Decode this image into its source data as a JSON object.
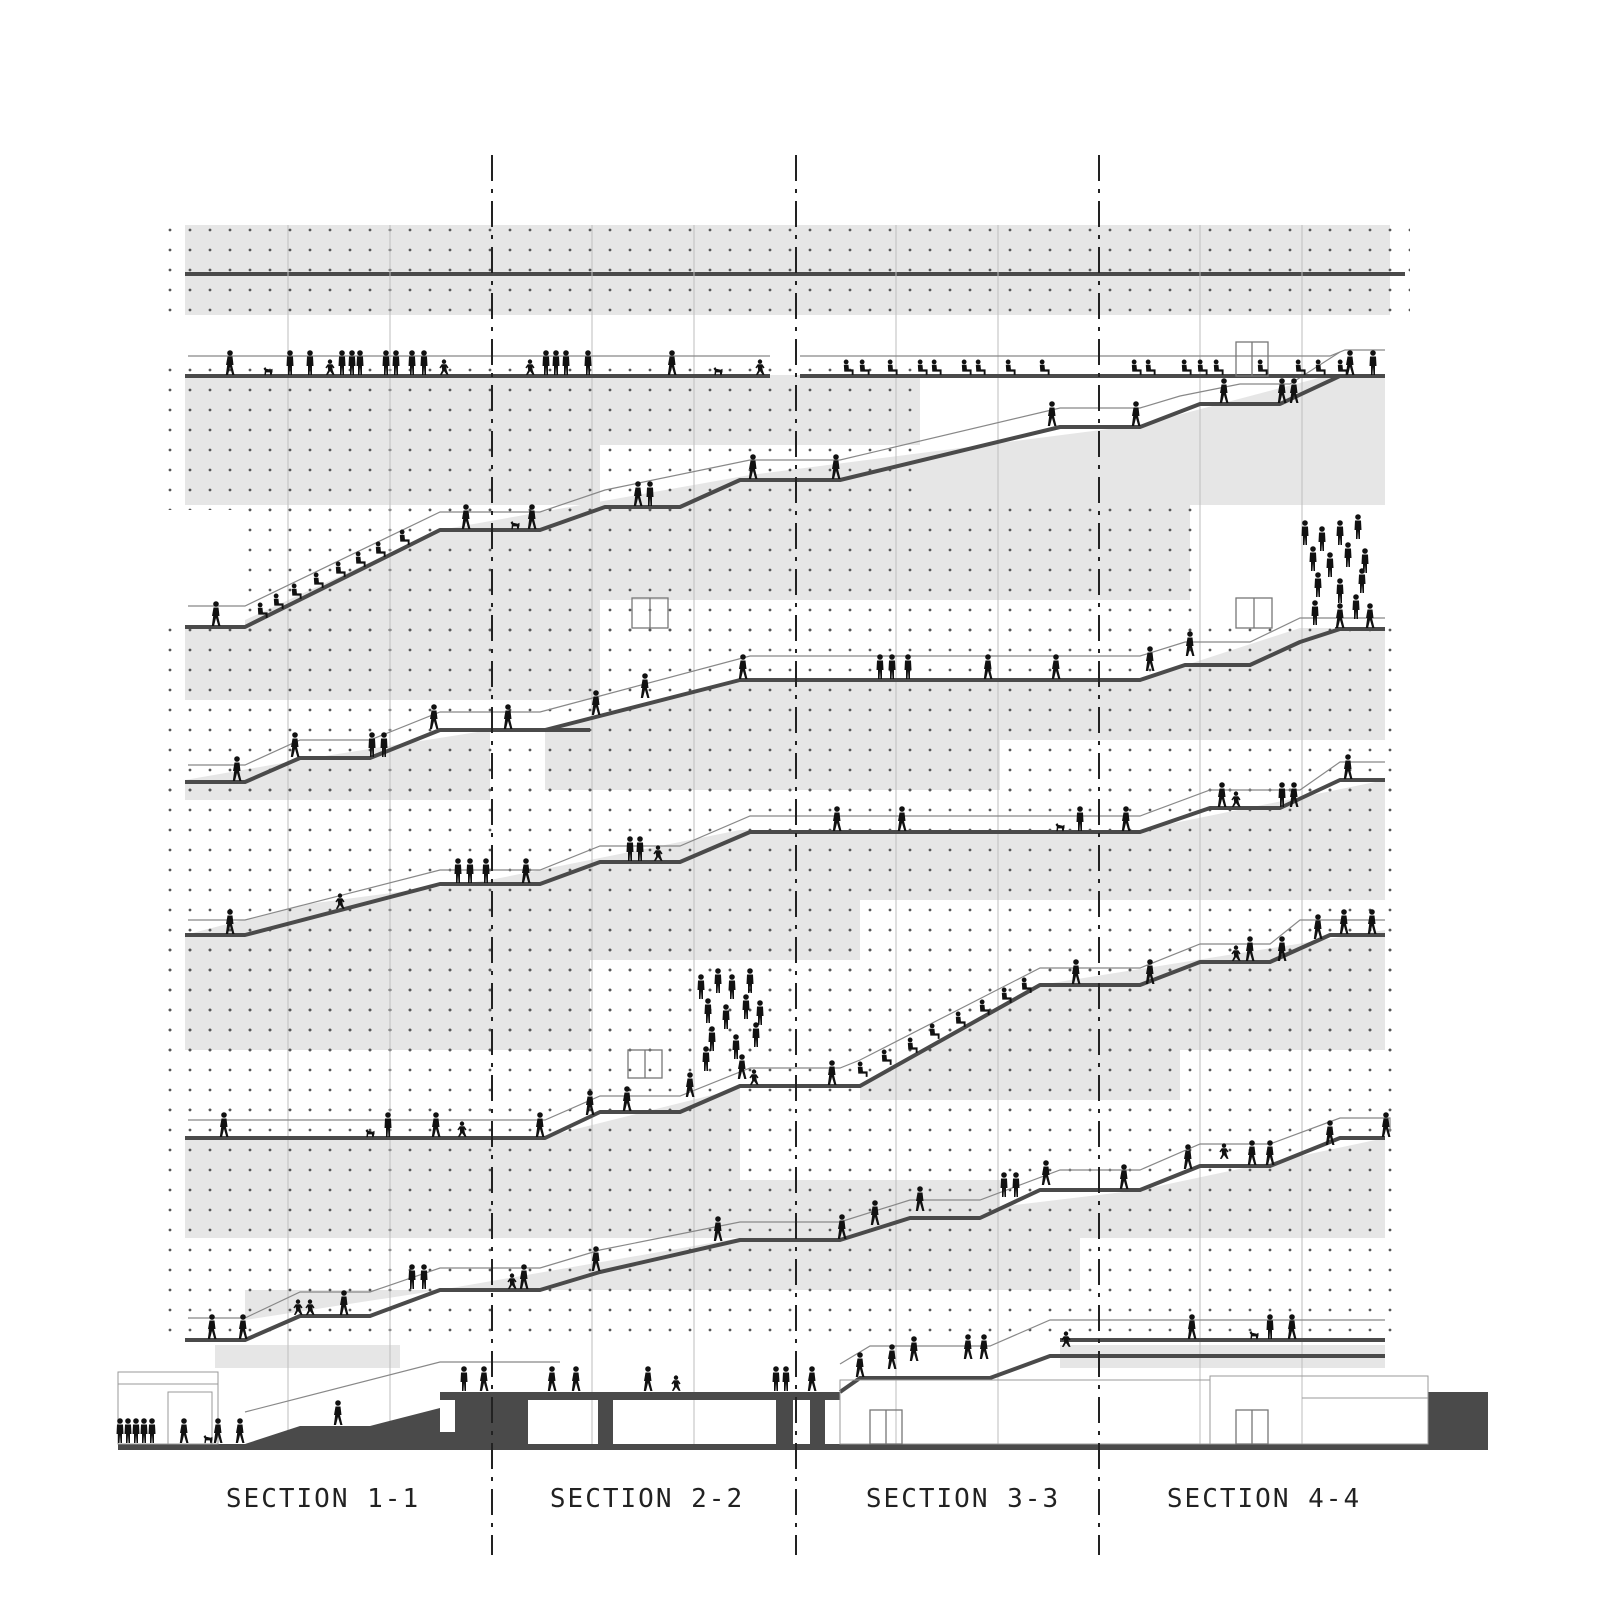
{
  "sections": [
    {
      "label": "SECTION 1-1"
    },
    {
      "label": "SECTION 2-2"
    },
    {
      "label": "SECTION 3-3"
    },
    {
      "label": "SECTION 4-4"
    }
  ],
  "colors": {
    "background": "#ffffff",
    "floor_slab": "#4a4a4a",
    "poche_fill": "#e6e6e6",
    "dot_grid": "#555555",
    "structure_line": "#bdbdbd",
    "railing": "#888888",
    "figure": "#111111",
    "cut_line": "#222222",
    "label_text": "#222222"
  },
  "icons": {
    "people": "person-silhouette-icon",
    "pets": "dog-silhouette-icon",
    "doors": "door-icon"
  }
}
